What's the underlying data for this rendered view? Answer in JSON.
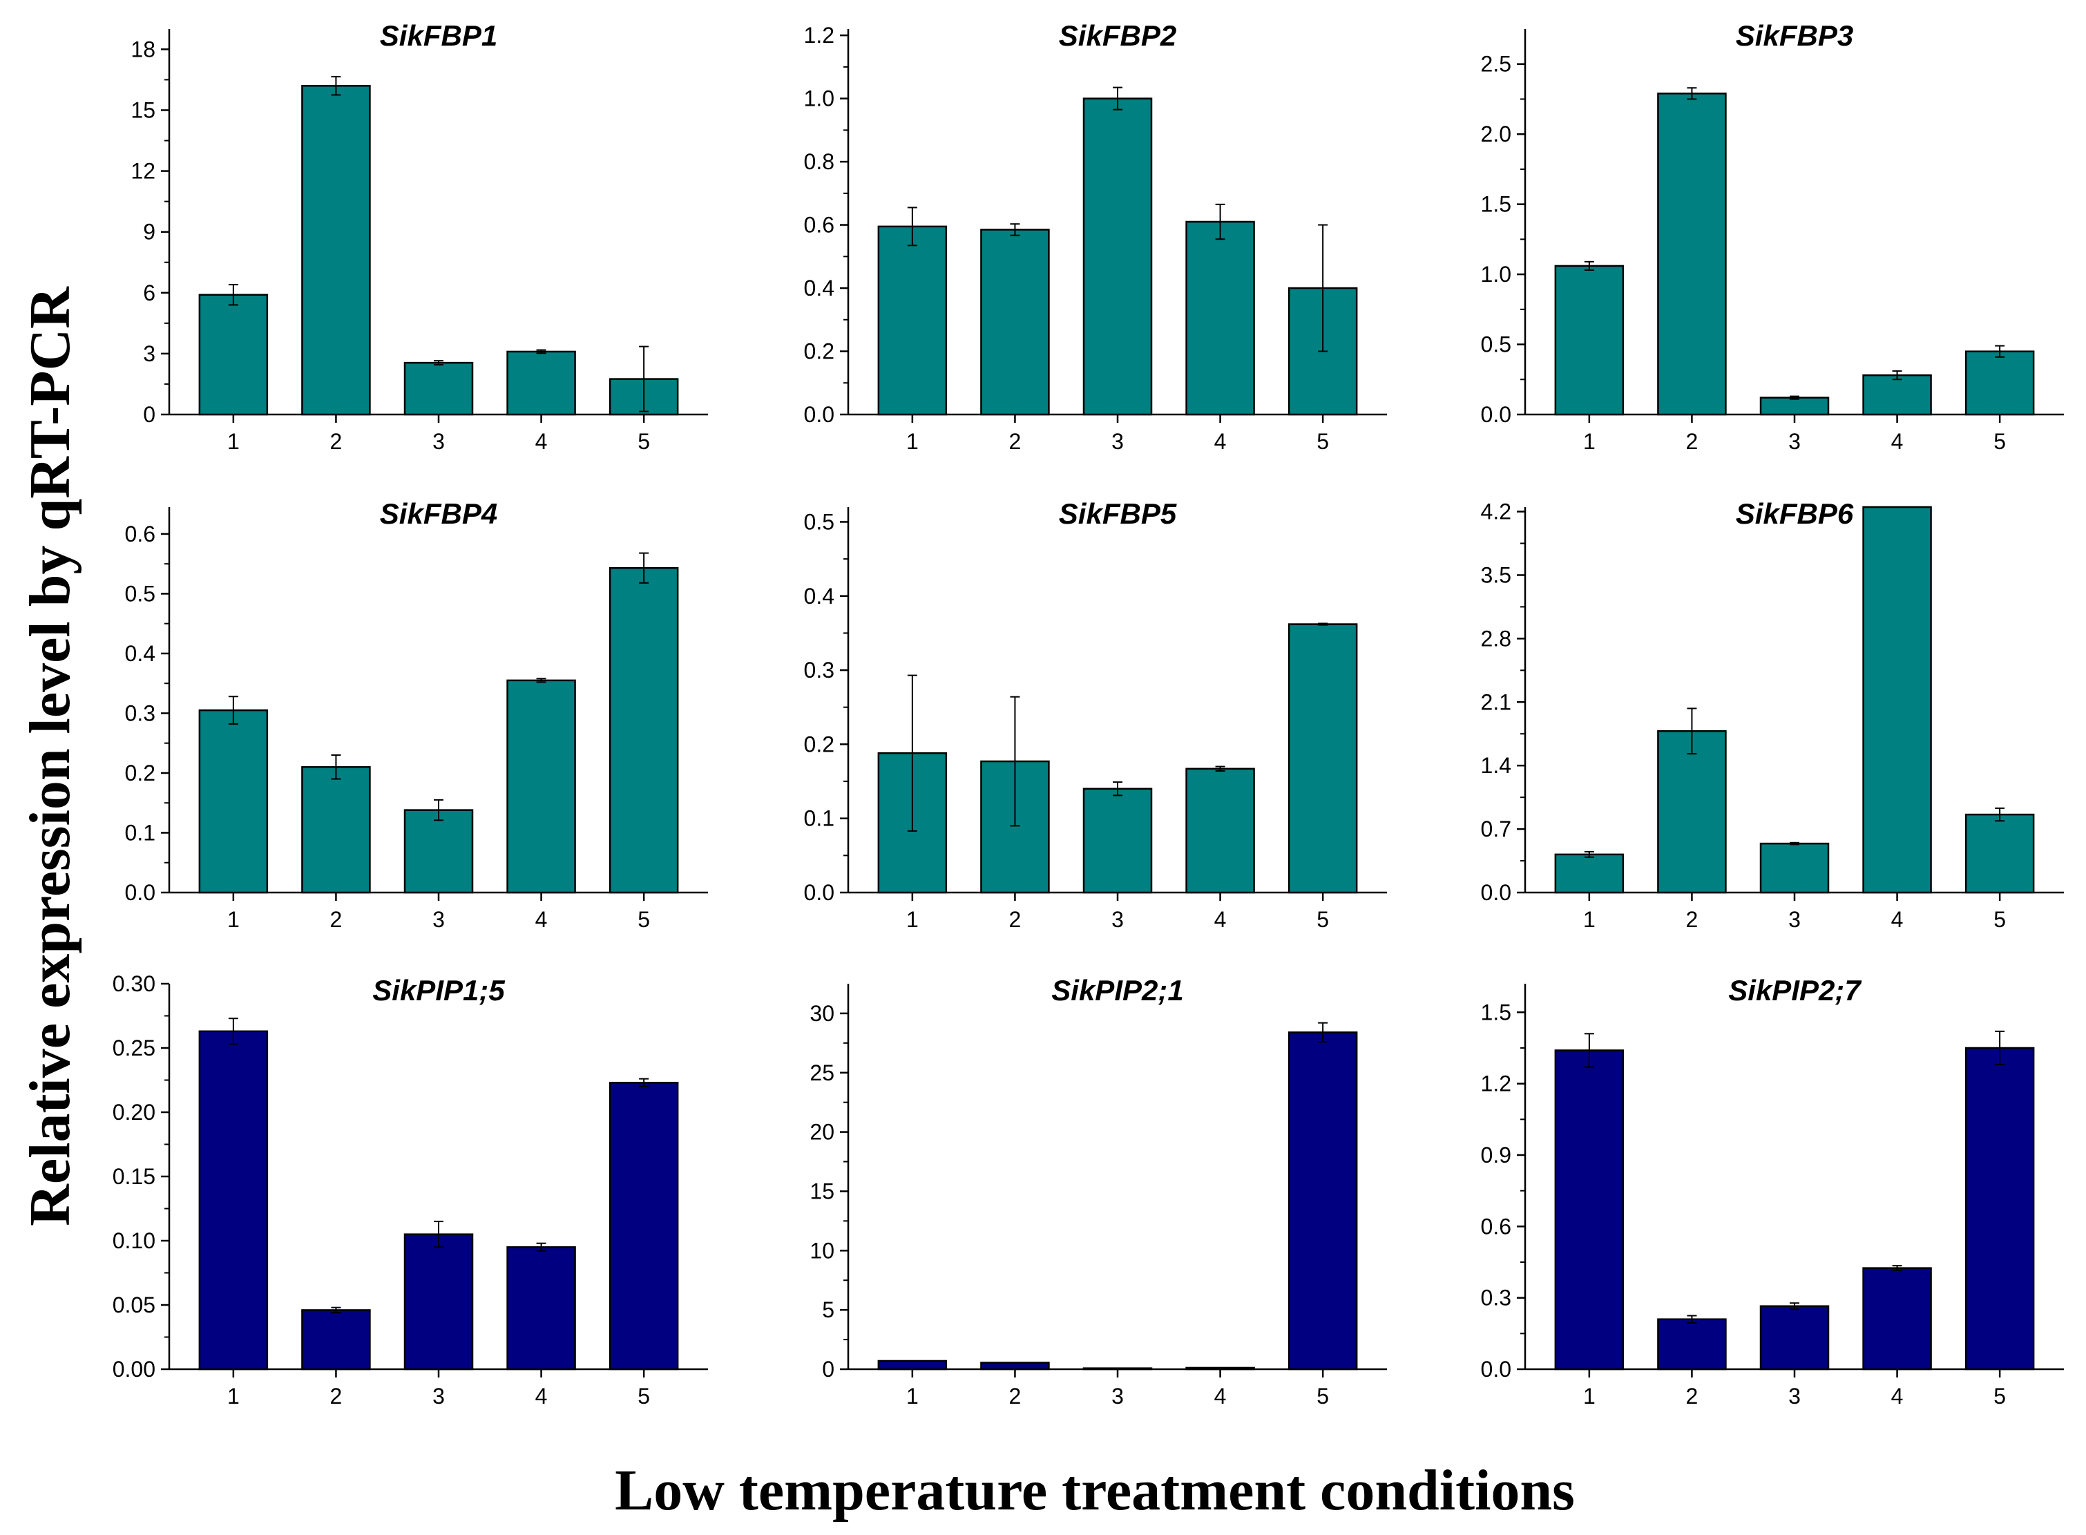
{
  "figure": {
    "ylabel": "Relative expression level by qRT-PCR",
    "xlabel": "Low temperature treatment conditions"
  },
  "colors": {
    "teal": "#008080",
    "navy": "#000080"
  },
  "chart_data": [
    {
      "type": "bar",
      "title": "SikFBP1",
      "color": "#008080",
      "categories": [
        "1",
        "2",
        "3",
        "4",
        "5"
      ],
      "values": [
        5.9,
        16.2,
        2.55,
        3.1,
        1.75
      ],
      "errors": [
        0.5,
        0.45,
        0.1,
        0.08,
        1.6
      ],
      "ylim": [
        0,
        19
      ],
      "yticks": [
        "0",
        "3",
        "6",
        "9",
        "12",
        "15",
        "18"
      ],
      "ytick_values": [
        0,
        3,
        6,
        9,
        12,
        15,
        18
      ]
    },
    {
      "type": "bar",
      "title": "SikFBP2",
      "color": "#008080",
      "categories": [
        "1",
        "2",
        "3",
        "4",
        "5"
      ],
      "values": [
        0.595,
        0.585,
        1.0,
        0.61,
        0.4
      ],
      "errors": [
        0.06,
        0.018,
        0.035,
        0.055,
        0.2
      ],
      "ylim": [
        0,
        1.22
      ],
      "yticks": [
        "0.0",
        "0.2",
        "0.4",
        "0.6",
        "0.8",
        "1.0",
        "1.2"
      ],
      "ytick_values": [
        0,
        0.2,
        0.4,
        0.6,
        0.8,
        1.0,
        1.2
      ]
    },
    {
      "type": "bar",
      "title": "SikFBP3",
      "color": "#008080",
      "categories": [
        "1",
        "2",
        "3",
        "4",
        "5"
      ],
      "values": [
        1.06,
        2.29,
        0.12,
        0.28,
        0.45
      ],
      "errors": [
        0.03,
        0.04,
        0.01,
        0.03,
        0.04
      ],
      "ylim": [
        0,
        2.75
      ],
      "yticks": [
        "0.0",
        "0.5",
        "1.0",
        "1.5",
        "2.0",
        "2.5"
      ],
      "ytick_values": [
        0,
        0.5,
        1.0,
        1.5,
        2.0,
        2.5
      ]
    },
    {
      "type": "bar",
      "title": "SikFBP4",
      "color": "#008080",
      "categories": [
        "1",
        "2",
        "3",
        "4",
        "5"
      ],
      "values": [
        0.305,
        0.21,
        0.138,
        0.355,
        0.543
      ],
      "errors": [
        0.023,
        0.02,
        0.017,
        0.003,
        0.025
      ],
      "ylim": [
        0,
        0.645
      ],
      "yticks": [
        "0.0",
        "0.1",
        "0.2",
        "0.3",
        "0.4",
        "0.5",
        "0.6"
      ],
      "ytick_values": [
        0,
        0.1,
        0.2,
        0.3,
        0.4,
        0.5,
        0.6
      ]
    },
    {
      "type": "bar",
      "title": "SikFBP5",
      "color": "#008080",
      "categories": [
        "1",
        "2",
        "3",
        "4",
        "5"
      ],
      "values": [
        0.188,
        0.177,
        0.14,
        0.167,
        0.362
      ],
      "errors": [
        0.105,
        0.087,
        0.009,
        0.003,
        0.001
      ],
      "ylim": [
        0,
        0.52
      ],
      "yticks": [
        "0.0",
        "0.1",
        "0.2",
        "0.3",
        "0.4",
        "0.5"
      ],
      "ytick_values": [
        0,
        0.1,
        0.2,
        0.3,
        0.4,
        0.5
      ]
    },
    {
      "type": "bar",
      "title": "SikFBP6",
      "color": "#008080",
      "categories": [
        "1",
        "2",
        "3",
        "4",
        "5"
      ],
      "values": [
        0.42,
        1.78,
        0.54,
        4.25,
        0.86
      ],
      "errors": [
        0.03,
        0.25,
        0.01,
        0.0,
        0.07
      ],
      "ylim": [
        0,
        4.25
      ],
      "yticks": [
        "0.0",
        "0.7",
        "1.4",
        "2.1",
        "2.8",
        "3.5",
        "4.2"
      ],
      "ytick_values": [
        0,
        0.7,
        1.4,
        2.1,
        2.8,
        3.5,
        4.2
      ]
    },
    {
      "type": "bar",
      "title": "SikPIP1;5",
      "color": "#000080",
      "categories": [
        "1",
        "2",
        "3",
        "4",
        "5"
      ],
      "values": [
        0.263,
        0.046,
        0.105,
        0.095,
        0.223
      ],
      "errors": [
        0.01,
        0.002,
        0.01,
        0.003,
        0.003
      ],
      "ylim": [
        0,
        0.3
      ],
      "yticks": [
        "0.00",
        "0.05",
        "0.10",
        "0.15",
        "0.20",
        "0.25",
        "0.30"
      ],
      "ytick_values": [
        0,
        0.05,
        0.1,
        0.15,
        0.2,
        0.25,
        0.3
      ]
    },
    {
      "type": "bar",
      "title": "SikPIP2;1",
      "color": "#000080",
      "categories": [
        "1",
        "2",
        "3",
        "4",
        "5"
      ],
      "values": [
        0.7,
        0.55,
        0.08,
        0.12,
        28.4
      ],
      "errors": [
        0.0,
        0.0,
        0.0,
        0.0,
        0.8
      ],
      "ylim": [
        0,
        32.5
      ],
      "yticks": [
        "0",
        "5",
        "10",
        "15",
        "20",
        "25",
        "30"
      ],
      "ytick_values": [
        0,
        5,
        10,
        15,
        20,
        25,
        30
      ]
    },
    {
      "type": "bar",
      "title": "SikPIP2;7",
      "color": "#000080",
      "categories": [
        "1",
        "2",
        "3",
        "4",
        "5"
      ],
      "values": [
        1.34,
        0.21,
        0.265,
        0.425,
        1.35
      ],
      "errors": [
        0.07,
        0.015,
        0.013,
        0.01,
        0.07
      ],
      "ylim": [
        0,
        1.62
      ],
      "yticks": [
        "0.0",
        "0.3",
        "0.6",
        "0.9",
        "1.2",
        "1.5"
      ],
      "ytick_values": [
        0,
        0.3,
        0.6,
        0.9,
        1.2,
        1.5
      ]
    }
  ]
}
